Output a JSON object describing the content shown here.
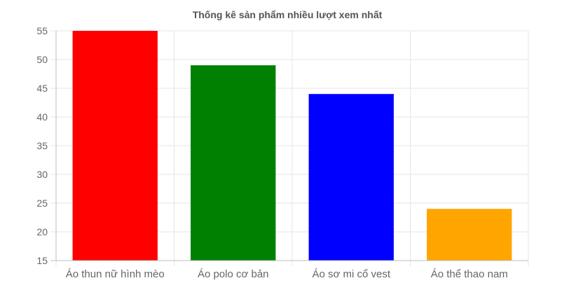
{
  "chart_data": {
    "type": "bar",
    "title": "Thống kê sản phẩm nhiều lượt xem nhất",
    "xlabel": "",
    "ylabel": "",
    "categories": [
      "Áo thun nữ hình mèo",
      "Áo polo cơ bản",
      "Áo sơ mi cổ vest",
      "Áo thể thao nam"
    ],
    "values": [
      55,
      49,
      44,
      24
    ],
    "colors": [
      "#ff0000",
      "#008000",
      "#0000ff",
      "#ffa500"
    ],
    "ylim": [
      15,
      55
    ],
    "yticks": [
      15,
      20,
      25,
      30,
      35,
      40,
      45,
      50,
      55
    ],
    "grid": true,
    "legend": "none"
  }
}
